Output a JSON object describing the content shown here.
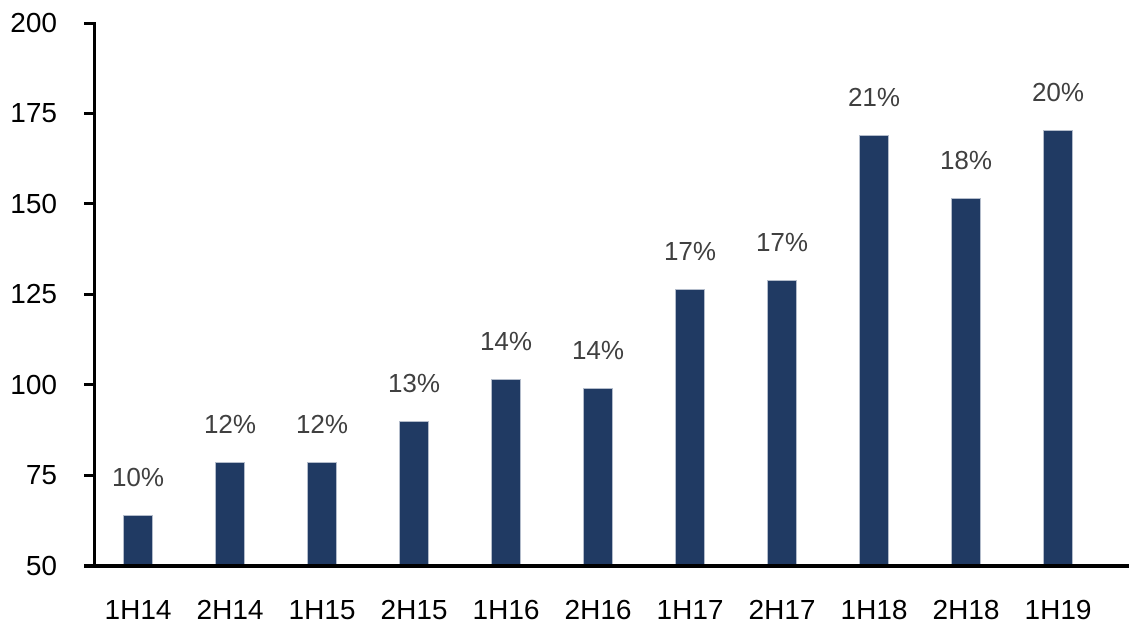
{
  "chart_data": {
    "type": "bar",
    "title": "",
    "xlabel": "",
    "ylabel": "",
    "categories": [
      "1H14",
      "2H14",
      "1H15",
      "2H15",
      "1H16",
      "2H16",
      "1H17",
      "2H17",
      "1H18",
      "2H18",
      "1H19"
    ],
    "values": [
      64,
      78.5,
      78.5,
      90,
      101.5,
      99,
      126.5,
      129,
      169,
      151.5,
      170.5
    ],
    "bar_labels": [
      "10%",
      "12%",
      "12%",
      "13%",
      "14%",
      "14%",
      "17%",
      "17%",
      "21%",
      "18%",
      "20%"
    ],
    "ylim": [
      50,
      200
    ],
    "ytick_step": 25,
    "ytick_labels": [
      "50",
      "75",
      "100",
      "125",
      "150",
      "175",
      "200"
    ],
    "grid": false,
    "legend_position": "none",
    "colors": {
      "bar_fill": "#203A63",
      "bar_border": "#B3BCCB",
      "data_label": "#404040",
      "axis_line": "#000000",
      "axis_tick_label": "#000000",
      "background": "#FFFFFF"
    }
  }
}
